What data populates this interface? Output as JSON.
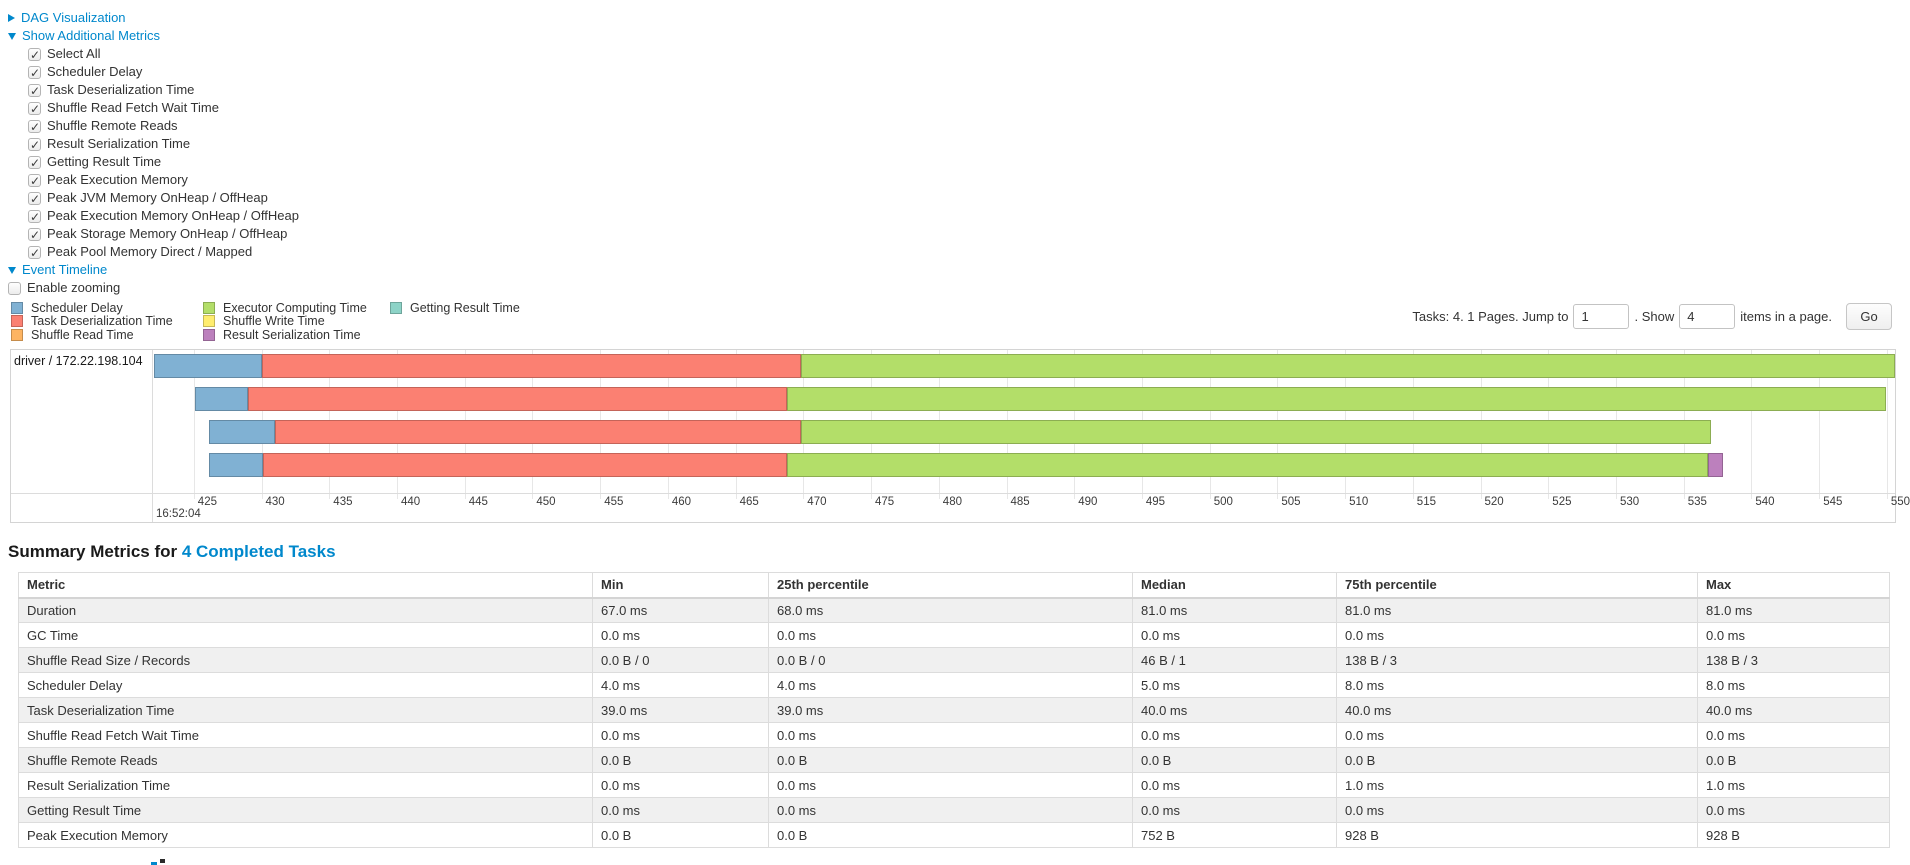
{
  "controls": {
    "dag": {
      "label": "DAG Visualization",
      "expanded": false
    },
    "additional_metrics": {
      "label": "Show Additional Metrics",
      "expanded": true,
      "checkboxes": [
        {
          "label": "Select All",
          "checked": true
        },
        {
          "label": "Scheduler Delay",
          "checked": true
        },
        {
          "label": "Task Deserialization Time",
          "checked": true
        },
        {
          "label": "Shuffle Read Fetch Wait Time",
          "checked": true
        },
        {
          "label": "Shuffle Remote Reads",
          "checked": true
        },
        {
          "label": "Result Serialization Time",
          "checked": true
        },
        {
          "label": "Getting Result Time",
          "checked": true
        },
        {
          "label": "Peak Execution Memory",
          "checked": true
        },
        {
          "label": "Peak JVM Memory OnHeap / OffHeap",
          "checked": true
        },
        {
          "label": "Peak Execution Memory OnHeap / OffHeap",
          "checked": true
        },
        {
          "label": "Peak Storage Memory OnHeap / OffHeap",
          "checked": true
        },
        {
          "label": "Peak Pool Memory Direct / Mapped",
          "checked": true
        }
      ]
    },
    "event_timeline": {
      "label": "Event Timeline",
      "expanded": true
    },
    "enable_zooming": {
      "label": "Enable zooming",
      "checked": false
    }
  },
  "legend": {
    "columns": [
      [
        {
          "label": "Scheduler Delay",
          "color": "#80B1D3"
        },
        {
          "label": "Task Deserialization Time",
          "color": "#FB8072"
        },
        {
          "label": "Shuffle Read Time",
          "color": "#FDB462"
        }
      ],
      [
        {
          "label": "Executor Computing Time",
          "color": "#B3DE69"
        },
        {
          "label": "Shuffle Write Time",
          "color": "#FFED6F"
        },
        {
          "label": "Result Serialization Time",
          "color": "#BC80BD"
        }
      ],
      [
        {
          "label": "Getting Result Time",
          "color": "#8DD3C7"
        }
      ]
    ]
  },
  "pagination": {
    "prefix": "Tasks: 4. 1 Pages. Jump to",
    "jump_value": "1",
    "mid": ". Show",
    "show_value": "4",
    "suffix": "items in a page.",
    "go_label": "Go"
  },
  "chart_data": {
    "type": "timeline",
    "title": "Event Timeline",
    "row_label": "driver / 172.22.198.104",
    "axis": {
      "min": 422.06,
      "max": 550.6,
      "tick_start": 425,
      "tick_end": 550,
      "tick_step": 5,
      "major_label": "16:52:04",
      "units": "milliseconds within second 16:52:04"
    },
    "colors": {
      "scheduler_delay": "#80B1D3",
      "task_deserialization": "#FB8072",
      "executor_computing": "#B3DE69",
      "result_serialization": "#BC80BD"
    },
    "tasks": [
      {
        "segments": [
          {
            "metric": "scheduler_delay",
            "start": 422.06,
            "end": 430.0
          },
          {
            "metric": "task_deserialization",
            "start": 430.0,
            "end": 469.8
          },
          {
            "metric": "executor_computing",
            "start": 469.8,
            "end": 550.6
          }
        ]
      },
      {
        "segments": [
          {
            "metric": "scheduler_delay",
            "start": 425.1,
            "end": 429.0
          },
          {
            "metric": "task_deserialization",
            "start": 429.0,
            "end": 468.8
          },
          {
            "metric": "executor_computing",
            "start": 468.8,
            "end": 549.9
          }
        ]
      },
      {
        "segments": [
          {
            "metric": "scheduler_delay",
            "start": 426.1,
            "end": 431.0
          },
          {
            "metric": "task_deserialization",
            "start": 431.0,
            "end": 469.8
          },
          {
            "metric": "executor_computing",
            "start": 469.8,
            "end": 537.0
          }
        ]
      },
      {
        "segments": [
          {
            "metric": "scheduler_delay",
            "start": 426.1,
            "end": 430.1
          },
          {
            "metric": "task_deserialization",
            "start": 430.1,
            "end": 468.8
          },
          {
            "metric": "executor_computing",
            "start": 468.8,
            "end": 536.8
          },
          {
            "metric": "result_serialization",
            "start": 536.8,
            "end": 537.9
          }
        ]
      }
    ]
  },
  "summary": {
    "title_prefix": "Summary Metrics for ",
    "title_link": "4 Completed Tasks",
    "table": {
      "headers": [
        "Metric",
        "Min",
        "25th percentile",
        "Median",
        "75th percentile",
        "Max"
      ],
      "rows": [
        [
          "Duration",
          "67.0 ms",
          "68.0 ms",
          "81.0 ms",
          "81.0 ms",
          "81.0 ms"
        ],
        [
          "GC Time",
          "0.0 ms",
          "0.0 ms",
          "0.0 ms",
          "0.0 ms",
          "0.0 ms"
        ],
        [
          "Shuffle Read Size / Records",
          "0.0 B / 0",
          "0.0 B / 0",
          "46 B / 1",
          "138 B / 3",
          "138 B / 3"
        ],
        [
          "Scheduler Delay",
          "4.0 ms",
          "4.0 ms",
          "5.0 ms",
          "8.0 ms",
          "8.0 ms"
        ],
        [
          "Task Deserialization Time",
          "39.0 ms",
          "39.0 ms",
          "40.0 ms",
          "40.0 ms",
          "40.0 ms"
        ],
        [
          "Shuffle Read Fetch Wait Time",
          "0.0 ms",
          "0.0 ms",
          "0.0 ms",
          "0.0 ms",
          "0.0 ms"
        ],
        [
          "Shuffle Remote Reads",
          "0.0 B",
          "0.0 B",
          "0.0 B",
          "0.0 B",
          "0.0 B"
        ],
        [
          "Result Serialization Time",
          "0.0 ms",
          "0.0 ms",
          "0.0 ms",
          "1.0 ms",
          "1.0 ms"
        ],
        [
          "Getting Result Time",
          "0.0 ms",
          "0.0 ms",
          "0.0 ms",
          "0.0 ms",
          "0.0 ms"
        ],
        [
          "Peak Execution Memory",
          "0.0 B",
          "0.0 B",
          "752 B",
          "928 B",
          "928 B"
        ]
      ]
    }
  }
}
